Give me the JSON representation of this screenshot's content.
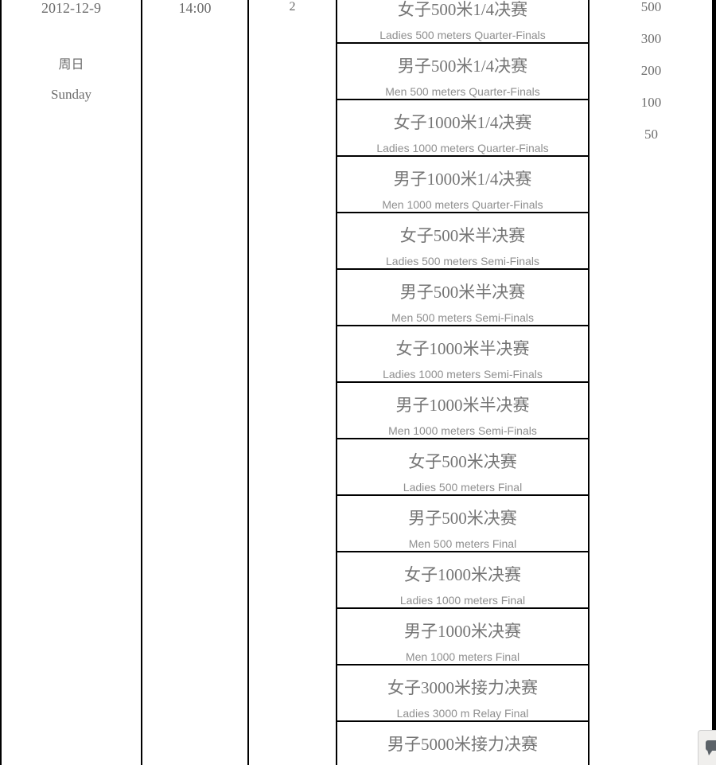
{
  "table": {
    "date": "2012-12-9",
    "weekday_cn": "周日",
    "weekday_en": "Sunday",
    "time": "14:00",
    "session": "2",
    "events": [
      {
        "cn": "女子500米1/4决赛",
        "en": "Ladies 500 meters Quarter-Finals"
      },
      {
        "cn": "男子500米1/4决赛",
        "en": "Men 500 meters Quarter-Finals"
      },
      {
        "cn": "女子1000米1/4决赛",
        "en": "Ladies 1000 meters Quarter-Finals"
      },
      {
        "cn": "男子1000米1/4决赛",
        "en": "Men 1000 meters Quarter-Finals"
      },
      {
        "cn": "女子500米半决赛",
        "en": "Ladies 500 meters Semi-Finals"
      },
      {
        "cn": "男子500米半决赛",
        "en": "Men 500 meters Semi-Finals"
      },
      {
        "cn": "女子1000米半决赛",
        "en": "Ladies 1000 meters Semi-Finals"
      },
      {
        "cn": "男子1000米半决赛",
        "en": "Men 1000 meters Semi-Finals"
      },
      {
        "cn": "女子500米决赛",
        "en": "Ladies 500 meters Final"
      },
      {
        "cn": "男子500米决赛",
        "en": "Men 500 meters Final"
      },
      {
        "cn": "女子1000米决赛",
        "en": "Ladies 1000 meters Final"
      },
      {
        "cn": "男子1000米决赛",
        "en": "Men 1000 meters Final"
      },
      {
        "cn": "女子3000米接力决赛",
        "en": "Ladies 3000 m Relay Final"
      },
      {
        "cn": "男子5000米接力决赛",
        "en": ""
      }
    ],
    "prizes": [
      "500",
      "300",
      "200",
      "100",
      "50"
    ],
    "colors": {
      "border": "#000000",
      "text_primary": "#6b6b6b",
      "event_cn_text": "#757575",
      "event_en_text": "#8f8f8f",
      "widget_bg": "#f0efed",
      "widget_icon": "#5b6268"
    }
  }
}
